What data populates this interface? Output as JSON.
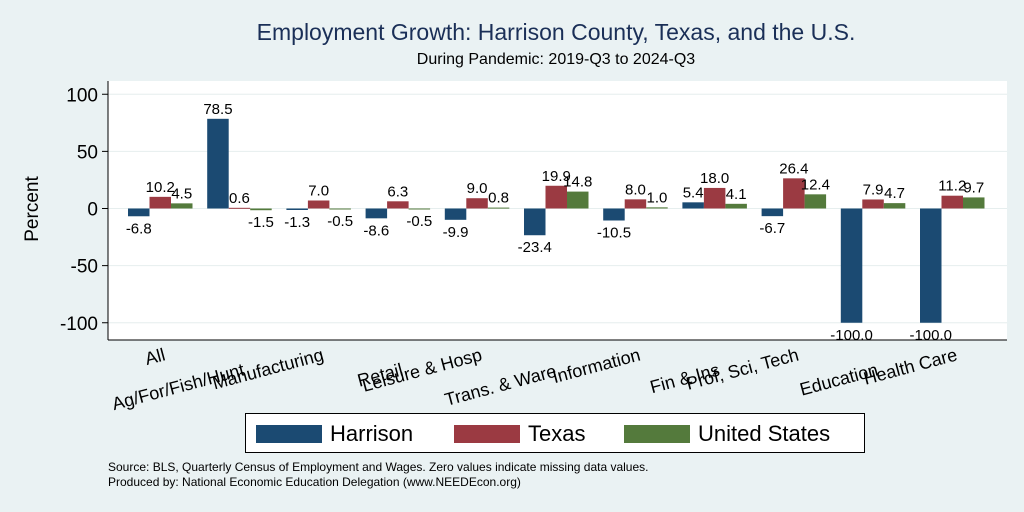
{
  "title": "Employment Growth: Harrison County, Texas, and the U.S.",
  "subtitle": "During Pandemic: 2019-Q3 to 2024-Q3",
  "source_line": "Source: BLS, Quarterly Census of Employment and Wages. Zero values indicate missing data values.",
  "produced_line": "Produced by: National Economic Education Delegation (www.NEEDEcon.org)",
  "colors": {
    "harrison": "#1b4a72",
    "texas": "#9b3a42",
    "us": "#547a3c"
  },
  "legend": [
    {
      "label": "Harrison",
      "color": "#1b4a72"
    },
    {
      "label": "Texas",
      "color": "#9b3a42"
    },
    {
      "label": "United States",
      "color": "#547a3c"
    }
  ],
  "chart_data": {
    "type": "bar",
    "title": "Employment Growth: Harrison County, Texas, and the U.S.",
    "subtitle": "During Pandemic: 2019-Q3 to 2024-Q3",
    "ylabel": "Percent",
    "xlabel": "",
    "ylim": [
      -110,
      115
    ],
    "yticks": [
      100,
      50,
      0,
      -50,
      -100
    ],
    "grid": true,
    "legend_position": "bottom",
    "categories": [
      "All",
      "Ag/For/Fish/Hunt",
      "Manufacturing",
      "Retail",
      "Leisure & Hosp",
      "Trans. & Ware.",
      "Information",
      "Fin & Ins",
      "Prof, Sci, Tech",
      "Education",
      "Health Care"
    ],
    "series": [
      {
        "name": "Harrison",
        "values": [
          -6.8,
          78.5,
          -1.3,
          -8.6,
          -9.9,
          -23.4,
          -10.5,
          5.4,
          -6.7,
          -100.0,
          -100.0
        ],
        "labels": [
          "-6.8",
          "78.5",
          "-1.3",
          "-8.6",
          "-9.9",
          "-23.4",
          "-10.5",
          "5.4",
          "-6.7",
          "-100.0",
          "-100.0"
        ]
      },
      {
        "name": "Texas",
        "values": [
          10.2,
          0.6,
          7.0,
          6.3,
          9.0,
          19.9,
          8.0,
          18.0,
          26.4,
          7.9,
          11.2
        ],
        "labels": [
          "10.2",
          "0.6",
          "7.0",
          "6.3",
          "9.0",
          "19.9",
          "8.0",
          "18.0",
          "26.4",
          "7.9",
          "11.2"
        ]
      },
      {
        "name": "United States",
        "values": [
          4.5,
          -1.5,
          -0.5,
          -0.5,
          0.8,
          14.8,
          1.0,
          4.1,
          12.4,
          4.7,
          9.7
        ],
        "labels": [
          "4.5",
          "-1.5",
          "-0.5",
          "-0.5",
          "0.8",
          "14.8",
          "1.0",
          "4.1",
          "12.4",
          "4.7",
          "9.7"
        ]
      }
    ]
  }
}
